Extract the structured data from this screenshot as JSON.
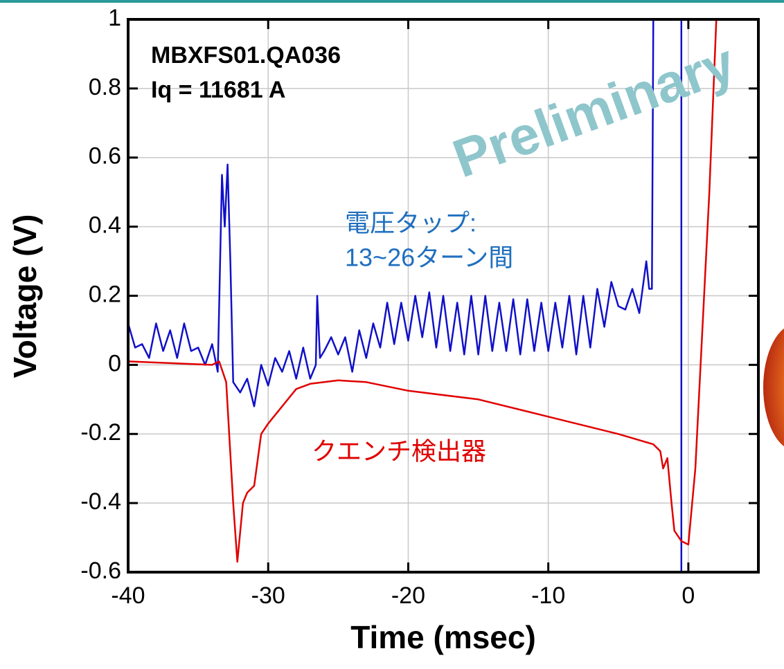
{
  "chart_data": {
    "type": "line",
    "x_label": "Time (msec)",
    "y_label": "Voltage (V)",
    "annotations": [
      "MBXFS01.QA036",
      "Iq = 11681 A",
      "Preliminary"
    ],
    "series_notes": [
      {
        "text": [
          "電圧タップ:",
          "13~26ターン間"
        ],
        "color": "#1f6fbf"
      },
      {
        "text": [
          "クエンチ検出器"
        ],
        "color": "#e00000"
      }
    ],
    "xlim": [
      -40,
      5
    ],
    "ylim": [
      -0.6,
      1
    ],
    "xticks": [
      -40,
      -30,
      -20,
      -10,
      0
    ],
    "yticks": [
      -0.6,
      -0.4,
      -0.2,
      0,
      0.2,
      0.4,
      0.6,
      0.8,
      1
    ],
    "grid": true,
    "series": [
      {
        "color": "#1010c8",
        "x": [
          -40,
          -39.5,
          -39,
          -38.5,
          -38,
          -37.5,
          -37,
          -36.5,
          -36,
          -35.5,
          -35,
          -34.5,
          -34,
          -33.6,
          -33.3,
          -33.1,
          -32.9,
          -32.7,
          -32.5,
          -32,
          -31.5,
          -31,
          -30.5,
          -30,
          -29.5,
          -29,
          -28.5,
          -28,
          -27.5,
          -27,
          -26.6,
          -26.5,
          -26.3,
          -26,
          -25.5,
          -25,
          -24.5,
          -24,
          -23.5,
          -23,
          -22.5,
          -22,
          -21.5,
          -21,
          -20.5,
          -20,
          -19.5,
          -19,
          -18.5,
          -18,
          -17.5,
          -17,
          -16.5,
          -16,
          -15.5,
          -15,
          -14.5,
          -14,
          -13.5,
          -13,
          -12.5,
          -12,
          -11.5,
          -11,
          -10.5,
          -10,
          -9.5,
          -9,
          -8.5,
          -8,
          -7.5,
          -7,
          -6.5,
          -6,
          -5.5,
          -5,
          -4.5,
          -4,
          -3.5,
          -3,
          -2.8,
          -2.6,
          -2.5,
          null,
          -0.5,
          -0.5
        ],
        "values": [
          0.12,
          0.05,
          0.06,
          0.02,
          0.12,
          0.04,
          0.1,
          0.02,
          0.12,
          0.04,
          0.05,
          0.0,
          0.06,
          -0.02,
          0.55,
          0.4,
          0.58,
          0.3,
          -0.05,
          -0.08,
          -0.04,
          -0.12,
          0.0,
          -0.06,
          0.02,
          -0.02,
          0.04,
          -0.04,
          0.05,
          -0.04,
          0.0,
          0.2,
          0.02,
          0.04,
          0.08,
          0.03,
          0.08,
          -0.02,
          0.1,
          0.02,
          0.12,
          0.05,
          0.18,
          0.06,
          0.18,
          0.07,
          0.2,
          0.08,
          0.21,
          0.05,
          0.2,
          0.04,
          0.18,
          0.03,
          0.2,
          0.03,
          0.2,
          0.04,
          0.18,
          0.04,
          0.19,
          0.03,
          0.19,
          0.04,
          0.18,
          0.04,
          0.18,
          0.05,
          0.2,
          0.03,
          0.2,
          0.05,
          0.22,
          0.11,
          0.24,
          0.17,
          0.16,
          0.22,
          0.15,
          0.3,
          0.22,
          0.22,
          1,
          null,
          1,
          -0.6
        ]
      },
      {
        "color": "#e00000",
        "x": [
          -40,
          -34,
          -33.5,
          -33,
          -32.5,
          -32.2,
          -31.8,
          -31.5,
          -31,
          -30.5,
          -30,
          -29,
          -28,
          -27,
          -25,
          -23,
          -20,
          -15,
          -10,
          -5,
          -2.5,
          -2,
          -1.8,
          -1.5,
          -1.2,
          -1,
          -0.5,
          0,
          0.5,
          1,
          1.5,
          2
        ],
        "values": [
          0.01,
          0.0,
          0.01,
          -0.05,
          -0.4,
          -0.57,
          -0.4,
          -0.37,
          -0.35,
          -0.2,
          -0.17,
          -0.12,
          -0.07,
          -0.055,
          -0.045,
          -0.05,
          -0.075,
          -0.1,
          -0.15,
          -0.2,
          -0.23,
          -0.25,
          -0.3,
          -0.27,
          -0.4,
          -0.48,
          -0.51,
          -0.52,
          -0.3,
          0.1,
          0.5,
          1.0
        ]
      }
    ]
  }
}
